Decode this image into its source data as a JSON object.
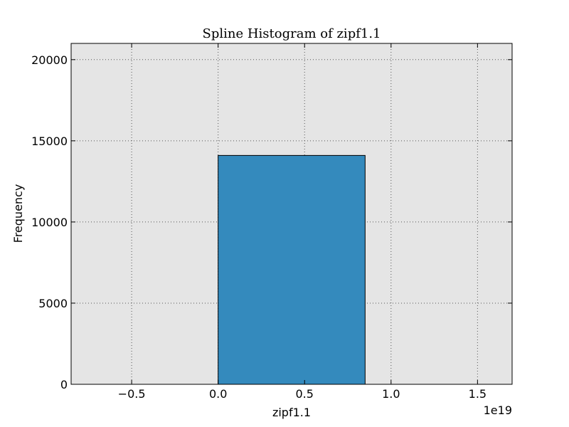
{
  "chart_data": {
    "type": "bar",
    "title": "Spline Histogram of zipf1.1",
    "xlabel": "zipf1.1",
    "ylabel": "Frequency",
    "x_offset_label": "1e19",
    "xlim": [
      -0.85,
      1.7
    ],
    "ylim": [
      0,
      21000
    ],
    "x_scale_factor": 1e+19,
    "x_ticks": [
      -0.5,
      0.0,
      0.5,
      1.0,
      1.5
    ],
    "x_tick_labels": [
      "−0.5",
      "0.0",
      "0.5",
      "1.0",
      "1.5"
    ],
    "y_ticks": [
      0,
      5000,
      10000,
      15000,
      20000
    ],
    "y_tick_labels": [
      "0",
      "5000",
      "10000",
      "15000",
      "20000"
    ],
    "bars": [
      {
        "x_start": 0.0,
        "x_end": 0.85,
        "value": 14100
      }
    ],
    "grid": true,
    "colors": {
      "bar_fill": "#348abd",
      "bar_edge": "#000000",
      "plot_background": "#e5e5e5",
      "grid": "#555555"
    }
  }
}
